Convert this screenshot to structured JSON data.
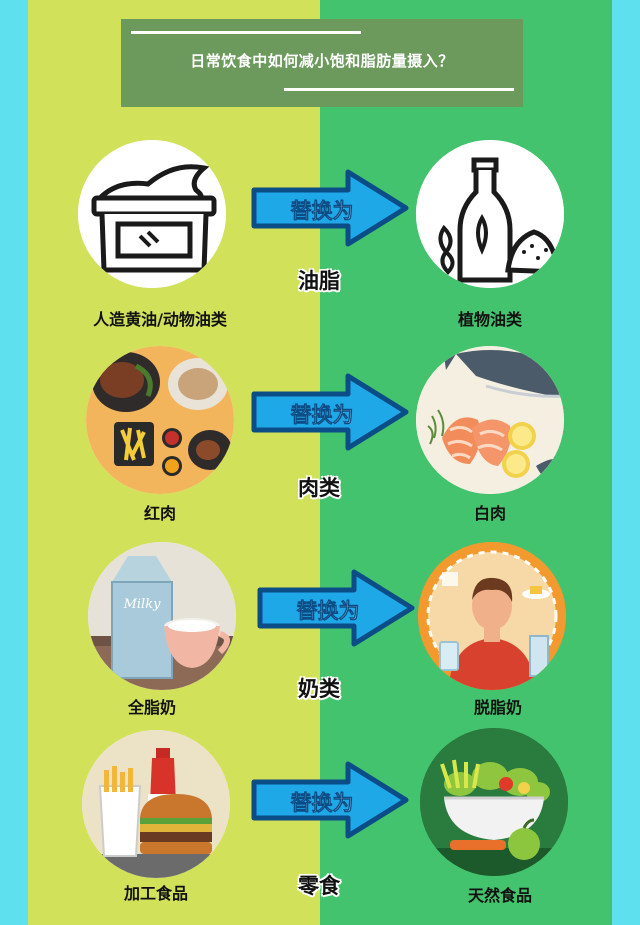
{
  "title": "日常饮食中如何减小饱和脂肪量摄入？",
  "arrow_label": "替换为",
  "colors": {
    "border": "#5ee0ee",
    "left_panel": "#d2e15a",
    "right_panel": "#44c36e",
    "title_box": "#6c9a5c",
    "arrow_fill": "#1fa8e8",
    "arrow_outline": "#0b4d86"
  },
  "rows": [
    {
      "category": "油脂",
      "from": {
        "label": "人造黄油/动物油类",
        "icon": "margarine-tub-icon"
      },
      "to": {
        "label": "植物油类",
        "icon": "olive-oil-bottle-icon"
      }
    },
    {
      "category": "肉类",
      "from": {
        "label": "红肉",
        "icon": "steak-and-fries-icon"
      },
      "to": {
        "label": "白肉",
        "icon": "salmon-fish-icon"
      }
    },
    {
      "category": "奶类",
      "from": {
        "label": "全脂奶",
        "icon": "milk-carton-cup-icon",
        "carton_text": "Milky"
      },
      "to": {
        "label": "脱脂奶",
        "icon": "person-with-milk-icon"
      }
    },
    {
      "category": "零食",
      "from": {
        "label": "加工食品",
        "icon": "fast-food-burger-icon"
      },
      "to": {
        "label": "天然食品",
        "icon": "salad-bowl-icon"
      }
    }
  ]
}
